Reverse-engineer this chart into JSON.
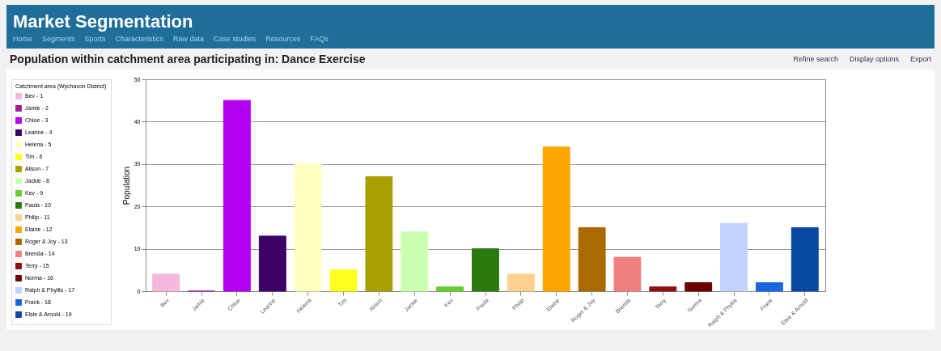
{
  "chart_data": {
    "type": "bar",
    "title": "Market Segmentation",
    "subtitle": "Population within catchment area participating in: Dance Exercise",
    "annotations": [
      "Home",
      "Segments",
      "Sports",
      "Characteristics",
      "Raw data",
      "Case studies",
      "Resources",
      "FAQs",
      "Refine search",
      "Display options",
      "Export"
    ],
    "ylabel": "Population",
    "legend_title": "Catchment area (Wychavon District)",
    "categories": [
      "Bev",
      "Jamie",
      "Chloe",
      "Leanne",
      "Helena",
      "Tim",
      "Alison",
      "Jackie",
      "Kev",
      "Paula",
      "Philip",
      "Elaine",
      "Roger & Joy",
      "Brenda",
      "Terry",
      "Norma",
      "Ralph & Phyllis",
      "Frank",
      "Elsie & Arnold"
    ],
    "series": [
      {
        "name": "Bev - 1",
        "color": "#f4b8dc",
        "values": [
          4,
          null,
          null,
          null,
          null,
          null,
          null,
          null,
          null,
          null,
          null,
          null,
          null,
          null,
          null,
          null,
          null,
          null,
          null
        ]
      },
      {
        "name": "Jamie - 2",
        "color": "#a0209a",
        "values": [
          null,
          0,
          null,
          null,
          null,
          null,
          null,
          null,
          null,
          null,
          null,
          null,
          null,
          null,
          null,
          null,
          null,
          null,
          null
        ]
      },
      {
        "name": "Chloe - 3",
        "color": "#b300f0",
        "values": [
          null,
          null,
          45,
          null,
          null,
          null,
          null,
          null,
          null,
          null,
          null,
          null,
          null,
          null,
          null,
          null,
          null,
          null,
          null
        ]
      },
      {
        "name": "Leanne - 4",
        "color": "#3c0066",
        "values": [
          null,
          null,
          null,
          13,
          null,
          null,
          null,
          null,
          null,
          null,
          null,
          null,
          null,
          null,
          null,
          null,
          null,
          null,
          null
        ]
      },
      {
        "name": "Helena - 5",
        "color": "#ffffc0",
        "values": [
          null,
          null,
          null,
          null,
          30,
          null,
          null,
          null,
          null,
          null,
          null,
          null,
          null,
          null,
          null,
          null,
          null,
          null,
          null
        ]
      },
      {
        "name": "Tim - 6",
        "color": "#ffff20",
        "values": [
          null,
          null,
          null,
          null,
          null,
          5,
          null,
          null,
          null,
          null,
          null,
          null,
          null,
          null,
          null,
          null,
          null,
          null,
          null
        ]
      },
      {
        "name": "Alison - 7",
        "color": "#a8a000",
        "values": [
          null,
          null,
          null,
          null,
          null,
          null,
          27,
          null,
          null,
          null,
          null,
          null,
          null,
          null,
          null,
          null,
          null,
          null,
          null
        ]
      },
      {
        "name": "Jackie - 8",
        "color": "#ccffb0",
        "values": [
          null,
          null,
          null,
          null,
          null,
          null,
          null,
          14,
          null,
          null,
          null,
          null,
          null,
          null,
          null,
          null,
          null,
          null,
          null
        ]
      },
      {
        "name": "Kev - 9",
        "color": "#66cc33",
        "values": [
          null,
          null,
          null,
          null,
          null,
          null,
          null,
          null,
          1,
          null,
          null,
          null,
          null,
          null,
          null,
          null,
          null,
          null,
          null
        ]
      },
      {
        "name": "Paula - 10",
        "color": "#2a7a10",
        "values": [
          null,
          null,
          null,
          null,
          null,
          null,
          null,
          null,
          null,
          10,
          null,
          null,
          null,
          null,
          null,
          null,
          null,
          null,
          null
        ]
      },
      {
        "name": "Philip - 11",
        "color": "#ffd090",
        "values": [
          null,
          null,
          null,
          null,
          null,
          null,
          null,
          null,
          null,
          null,
          4,
          null,
          null,
          null,
          null,
          null,
          null,
          null,
          null
        ]
      },
      {
        "name": "Elaine - 12",
        "color": "#ffa500",
        "values": [
          null,
          null,
          null,
          null,
          null,
          null,
          null,
          null,
          null,
          null,
          null,
          34,
          null,
          null,
          null,
          null,
          null,
          null,
          null
        ]
      },
      {
        "name": "Roger & Joy - 13",
        "color": "#aa6a00",
        "values": [
          null,
          null,
          null,
          null,
          null,
          null,
          null,
          null,
          null,
          null,
          null,
          null,
          15,
          null,
          null,
          null,
          null,
          null,
          null
        ]
      },
      {
        "name": "Brenda - 14",
        "color": "#f08080",
        "values": [
          null,
          null,
          null,
          null,
          null,
          null,
          null,
          null,
          null,
          null,
          null,
          null,
          null,
          8,
          null,
          null,
          null,
          null,
          null
        ]
      },
      {
        "name": "Terry - 15",
        "color": "#901010",
        "values": [
          null,
          null,
          null,
          null,
          null,
          null,
          null,
          null,
          null,
          null,
          null,
          null,
          null,
          null,
          1,
          null,
          null,
          null,
          null
        ]
      },
      {
        "name": "Norma - 16",
        "color": "#6a0000",
        "values": [
          null,
          null,
          null,
          null,
          null,
          null,
          null,
          null,
          null,
          null,
          null,
          null,
          null,
          null,
          null,
          2,
          null,
          null,
          null
        ]
      },
      {
        "name": "Ralph & Phyllis - 17",
        "color": "#c0d4ff",
        "values": [
          null,
          null,
          null,
          null,
          null,
          null,
          null,
          null,
          null,
          null,
          null,
          null,
          null,
          null,
          null,
          null,
          16,
          null,
          null
        ]
      },
      {
        "name": "Frank - 18",
        "color": "#1a66dd",
        "values": [
          null,
          null,
          null,
          null,
          null,
          null,
          null,
          null,
          null,
          null,
          null,
          null,
          null,
          null,
          null,
          null,
          null,
          2,
          null
        ]
      },
      {
        "name": "Elsie & Arnold - 19",
        "color": "#0a4aa0",
        "values": [
          null,
          null,
          null,
          null,
          null,
          null,
          null,
          null,
          null,
          null,
          null,
          null,
          null,
          null,
          null,
          null,
          null,
          null,
          15
        ]
      }
    ],
    "ylim": [
      0,
      50
    ],
    "yticks": [
      0,
      10,
      20,
      30,
      40,
      50
    ],
    "grid": "y",
    "legend": "left"
  }
}
